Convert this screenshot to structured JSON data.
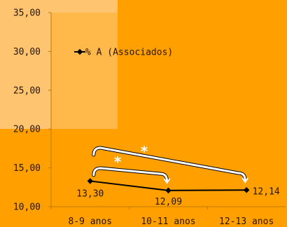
{
  "chart_data": {
    "type": "line",
    "categories": [
      "8-9 anos",
      "10-11 anos",
      "12-13 anos"
    ],
    "series": [
      {
        "name": "% A (Associados)",
        "values": [
          13.3,
          12.09,
          12.14
        ],
        "color": "#000000"
      }
    ],
    "data_labels": [
      "13,30",
      "12,09",
      "12,14"
    ],
    "yticks": [
      "10,00",
      "15,00",
      "20,00",
      "25,00",
      "30,00",
      "35,00"
    ],
    "ylim": [
      10,
      35
    ],
    "grid": false,
    "legend_position": "top-left",
    "annotations": [
      {
        "type": "significance-bracket",
        "from": "8-9 anos",
        "to": "10-11 anos",
        "mark": "*"
      },
      {
        "type": "significance-bracket",
        "from": "8-9 anos",
        "to": "12-13 anos",
        "mark": "*"
      }
    ],
    "colors": {
      "background": "#ffa000",
      "plot_highlight": "#ffb84a",
      "outer_highlight": "#ffc470",
      "line": "#000000",
      "bracket": "#ffffff"
    }
  }
}
